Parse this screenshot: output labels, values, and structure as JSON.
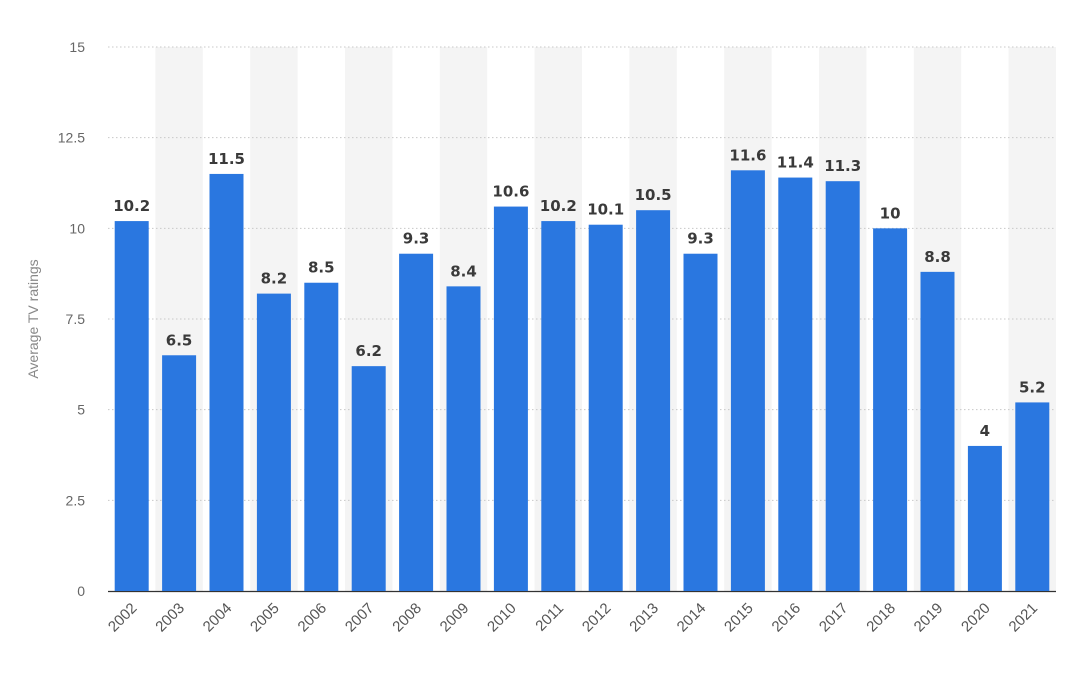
{
  "chart_data": {
    "type": "bar",
    "ylabel": "Average TV ratings",
    "ylim": [
      0,
      15
    ],
    "yticks": [
      0,
      2.5,
      5,
      7.5,
      10,
      12.5,
      15
    ],
    "ytick_labels": [
      "0",
      "2.5",
      "5",
      "7.5",
      "10",
      "12.5",
      "15"
    ],
    "grid": true,
    "categories": [
      "2002",
      "2003",
      "2004",
      "2005",
      "2006",
      "2007",
      "2008",
      "2009",
      "2010",
      "2011",
      "2012",
      "2013",
      "2014",
      "2015",
      "2016",
      "2017",
      "2018",
      "2019",
      "2020",
      "2021"
    ],
    "values": [
      10.2,
      6.5,
      11.5,
      8.2,
      8.5,
      6.2,
      9.3,
      8.4,
      10.6,
      10.2,
      10.1,
      10.5,
      9.3,
      11.6,
      11.4,
      11.3,
      10,
      8.8,
      4,
      5.2
    ],
    "value_labels": [
      "10.2",
      "6.5",
      "11.5",
      "8.2",
      "8.5",
      "6.2",
      "9.3",
      "8.4",
      "10.6",
      "10.2",
      "10.1",
      "10.5",
      "9.3",
      "11.6",
      "11.4",
      "11.3",
      "10",
      "8.8",
      "4",
      "5.2"
    ],
    "bar_color": "#2a77e0",
    "band_color": "#f4f4f4"
  }
}
